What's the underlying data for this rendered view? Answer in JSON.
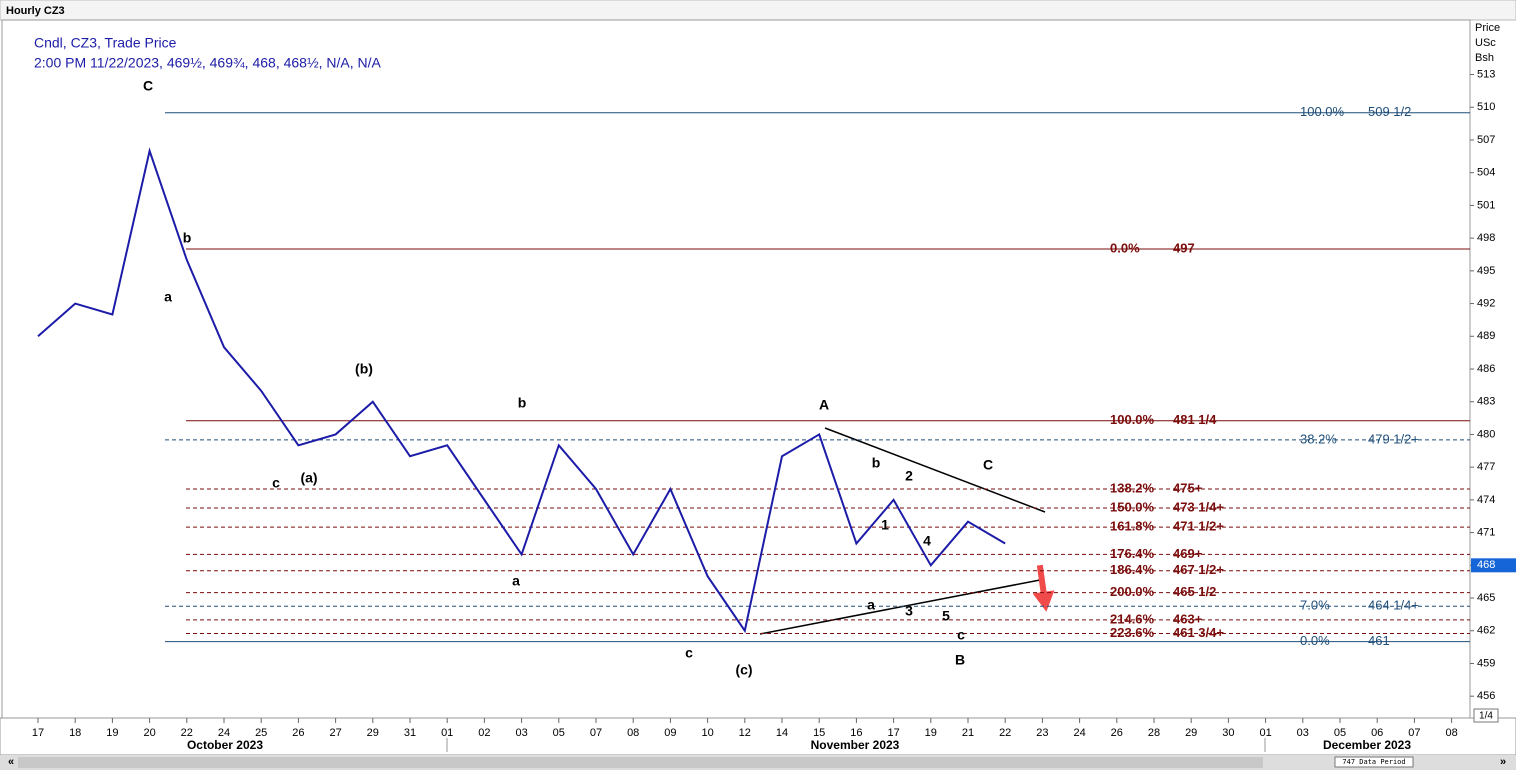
{
  "chart_data": {
    "type": "line",
    "window_title": "Hourly CZ3",
    "legend_line1": "Cndl, CZ3, Trade Price",
    "legend_line2": "2:00 PM 11/22/2023, 469½, 469¾, 468, 468½, N/A, N/A",
    "axis_header": [
      "Price",
      "USc",
      "Bsh"
    ],
    "categories": [
      "17",
      "18",
      "19",
      "20",
      "22",
      "24",
      "25",
      "26",
      "27",
      "29",
      "31",
      "01",
      "02",
      "03",
      "05",
      "07",
      "08",
      "09",
      "10",
      "12",
      "14",
      "15",
      "16",
      "17",
      "19",
      "21",
      "22",
      "23",
      "24",
      "26",
      "28",
      "29",
      "30",
      "01",
      "03",
      "05",
      "06",
      "07",
      "08"
    ],
    "months": [
      "October 2023",
      "November 2023",
      "December 2023"
    ],
    "series": [
      {
        "name": "CZ3",
        "color": "#1c1ca8",
        "values": [
          489,
          492,
          491,
          506,
          496,
          488,
          484,
          479,
          480,
          483,
          478,
          479,
          474,
          469,
          479,
          475,
          469,
          475,
          467,
          462,
          478,
          480,
          470,
          474,
          468,
          472,
          470,
          null,
          null,
          null,
          null,
          null,
          null,
          null,
          null,
          null,
          null,
          null,
          null
        ]
      }
    ],
    "ylim": [
      454,
      518
    ],
    "yticks": [
      456,
      459,
      462,
      465,
      468,
      471,
      474,
      477,
      480,
      483,
      486,
      489,
      492,
      495,
      498,
      501,
      504,
      507,
      510,
      513
    ],
    "last_price": 468,
    "fib_levels": [
      {
        "value": 509.5,
        "pct": "100.0%",
        "label": "509 1/2",
        "color": "#1f4e79",
        "style": "solid"
      },
      {
        "value": 497,
        "pct": "0.0%",
        "label": "497",
        "color": "#7b0c0c",
        "style": "solid"
      },
      {
        "value": 481.25,
        "pct": "100.0%",
        "label": "481 1/4",
        "color": "#7b0c0c",
        "style": "solid"
      },
      {
        "value": 479.5,
        "pct": "38.2%",
        "label": "479 1/2+",
        "color": "#1f4e79",
        "style": "dashed"
      },
      {
        "value": 475,
        "pct": "138.2%",
        "label": "475+",
        "color": "#7b0c0c",
        "style": "dashed"
      },
      {
        "value": 473.25,
        "pct": "150.0%",
        "label": "473 1/4+",
        "color": "#7b0c0c",
        "style": "dashed"
      },
      {
        "value": 471.5,
        "pct": "161.8%",
        "label": "471 1/2+",
        "color": "#7b0c0c",
        "style": "dashed"
      },
      {
        "value": 469,
        "pct": "176.4%",
        "label": "469+",
        "color": "#7b0c0c",
        "style": "dashed"
      },
      {
        "value": 467.5,
        "pct": "186.4%",
        "label": "467 1/2+",
        "color": "#7b0c0c",
        "style": "dashed"
      },
      {
        "value": 465.5,
        "pct": "200.0%",
        "label": "465 1/2",
        "color": "#7b0c0c",
        "style": "dashed"
      },
      {
        "value": 464.25,
        "pct": "7.0%",
        "label": "464 1/4+",
        "color": "#1f4e79",
        "style": "dashed"
      },
      {
        "value": 463,
        "pct": "214.6%",
        "label": "463+",
        "color": "#7b0c0c",
        "style": "dashed"
      },
      {
        "value": 461.75,
        "pct": "223.6%",
        "label": "461 3/4+",
        "color": "#7b0c0c",
        "style": "dashed"
      },
      {
        "value": 461,
        "pct": "0.0%",
        "label": "461",
        "color": "#1f4e79",
        "style": "solid"
      }
    ],
    "annotations": [
      "C",
      "b",
      "a",
      "(b)",
      "(a)",
      "c",
      "b",
      "a",
      "c",
      "(c)",
      "A",
      "b",
      "2",
      "1",
      "4",
      "3",
      "a",
      "5",
      "C",
      "c",
      "B"
    ],
    "zoom": "1/4",
    "data_period": "747 Data Period"
  }
}
